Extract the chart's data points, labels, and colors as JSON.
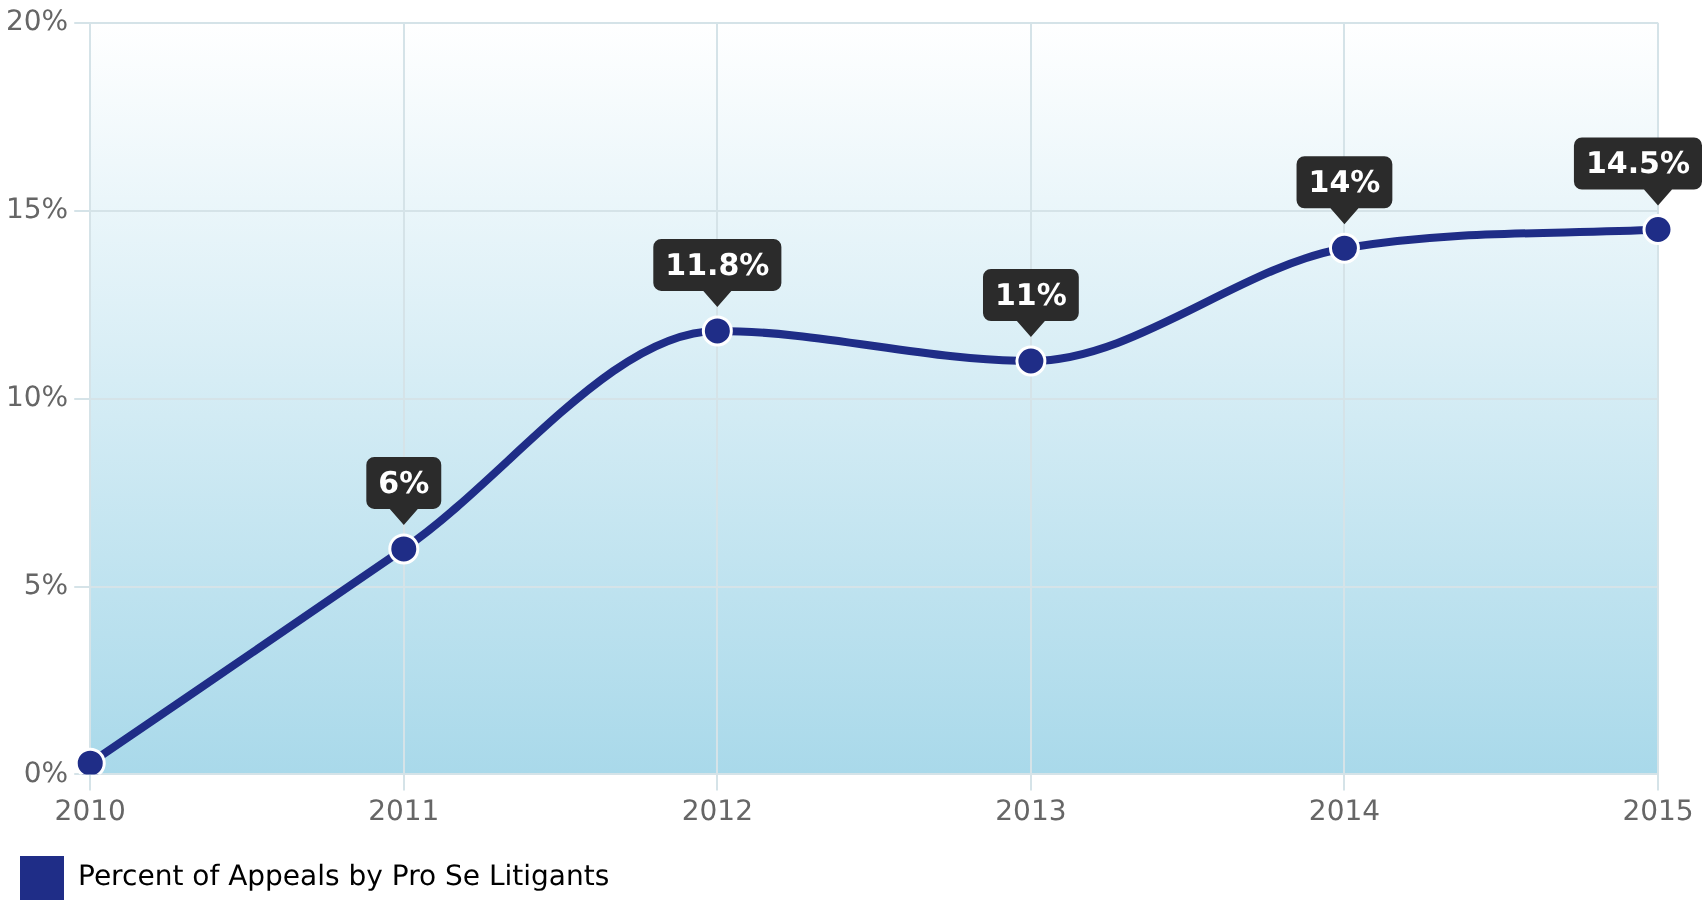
{
  "chart_data": {
    "type": "line",
    "categories": [
      "2010",
      "2011",
      "2012",
      "2013",
      "2014",
      "2015"
    ],
    "series": [
      {
        "name": "Percent of Appeals by Pro Se Litigants",
        "color": "#1f2d87",
        "values": [
          0.3,
          6,
          11.8,
          11,
          14,
          14.5
        ],
        "value_labels": [
          null,
          "6%",
          "11.8%",
          "11%",
          "14%",
          "14.5%"
        ]
      }
    ],
    "ylim": [
      0,
      20
    ],
    "yticks": [
      {
        "value": 0,
        "label": "0%"
      },
      {
        "value": 5,
        "label": "5%"
      },
      {
        "value": 10,
        "label": "10%"
      },
      {
        "value": 15,
        "label": "15%"
      },
      {
        "value": 20,
        "label": "20%"
      }
    ],
    "grid": true,
    "legend": "bottom left",
    "marker": "circle",
    "line_style": "solid"
  }
}
